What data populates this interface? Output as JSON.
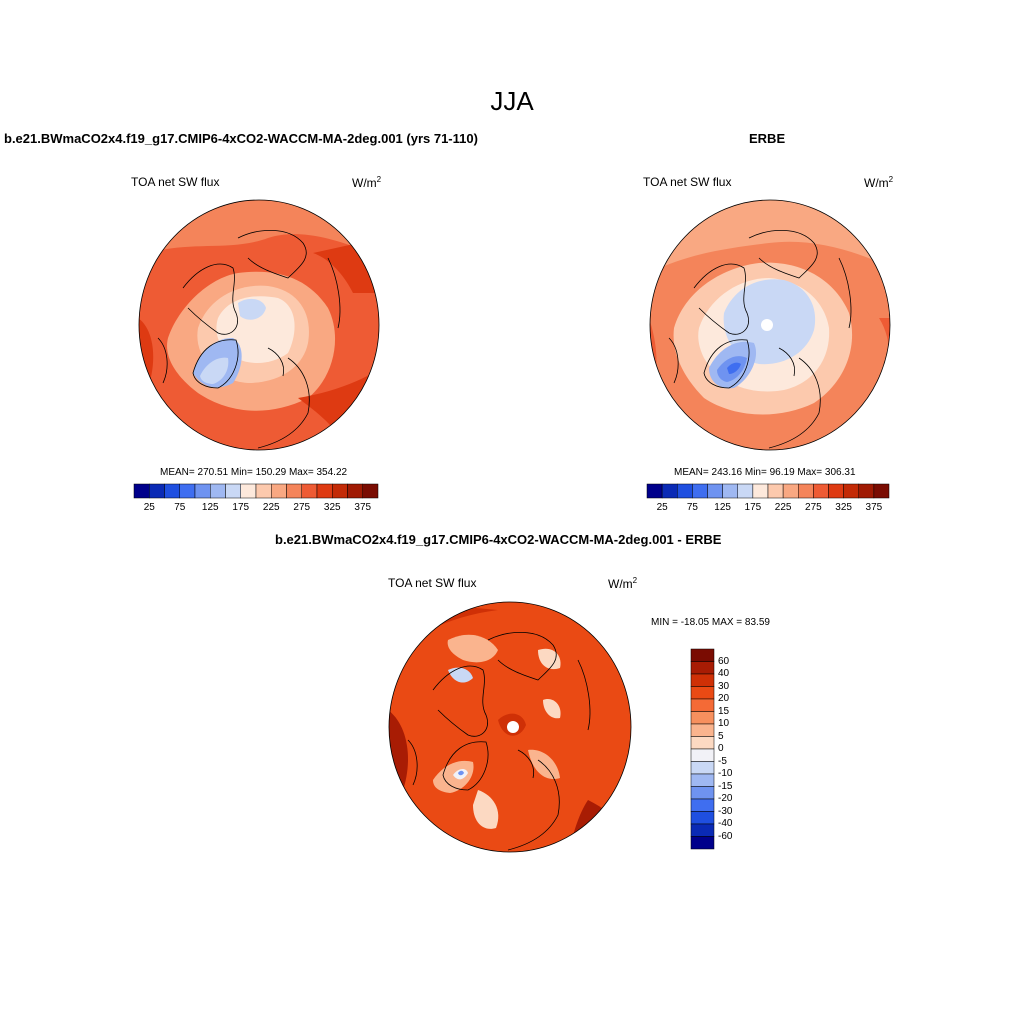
{
  "title": "JJA",
  "panels": [
    {
      "id": "model",
      "title": "b.e21.BWmaCO2x4.f19_g17.CMIP6-4xCO2-WACCM-MA-2deg.001 (yrs 71-110)",
      "variable": "TOA net SW flux",
      "units_base": "W/m",
      "units_exp": "2",
      "stats": "MEAN= 270.51  Min= 150.29  Max= 354.22"
    },
    {
      "id": "obs",
      "title": "ERBE",
      "variable": "TOA net SW flux",
      "units_base": "W/m",
      "units_exp": "2",
      "stats": "MEAN= 243.16  Min=  96.19  Max= 306.31"
    },
    {
      "id": "diff",
      "title": "b.e21.BWmaCO2x4.f19_g17.CMIP6-4xCO2-WACCM-MA-2deg.001 - ERBE",
      "variable": "TOA net SW flux",
      "units_base": "W/m",
      "units_exp": "2",
      "stats": "MIN = -18.05 MAX =  83.59"
    }
  ],
  "colorbar_horizontal": {
    "labels": [
      "25",
      "75",
      "125",
      "175",
      "225",
      "275",
      "325",
      "375"
    ],
    "colors": [
      "#00008b",
      "#0a2ab5",
      "#1f4fe0",
      "#3f6ef0",
      "#6f93f0",
      "#9fb8f2",
      "#c9d8f5",
      "#fde9dc",
      "#fcc9ad",
      "#f9a882",
      "#f4845a",
      "#ee5b34",
      "#de3a12",
      "#c32a06",
      "#a01a03",
      "#7a0c02"
    ]
  },
  "colorbar_vertical": {
    "labels": [
      "60",
      "40",
      "30",
      "20",
      "15",
      "10",
      "5",
      "0",
      "-5",
      "-10",
      "-15",
      "-20",
      "-30",
      "-40",
      "-60"
    ],
    "colors": [
      "#7a0c02",
      "#a81c04",
      "#cf3006",
      "#ea4a14",
      "#f46a36",
      "#f7905e",
      "#fab48e",
      "#fcd9c2",
      "#f2f2f7",
      "#c9d8f5",
      "#9fb8f2",
      "#6f93f0",
      "#3f6ef0",
      "#1f4fe0",
      "#0a2ab5",
      "#00008b"
    ]
  }
}
